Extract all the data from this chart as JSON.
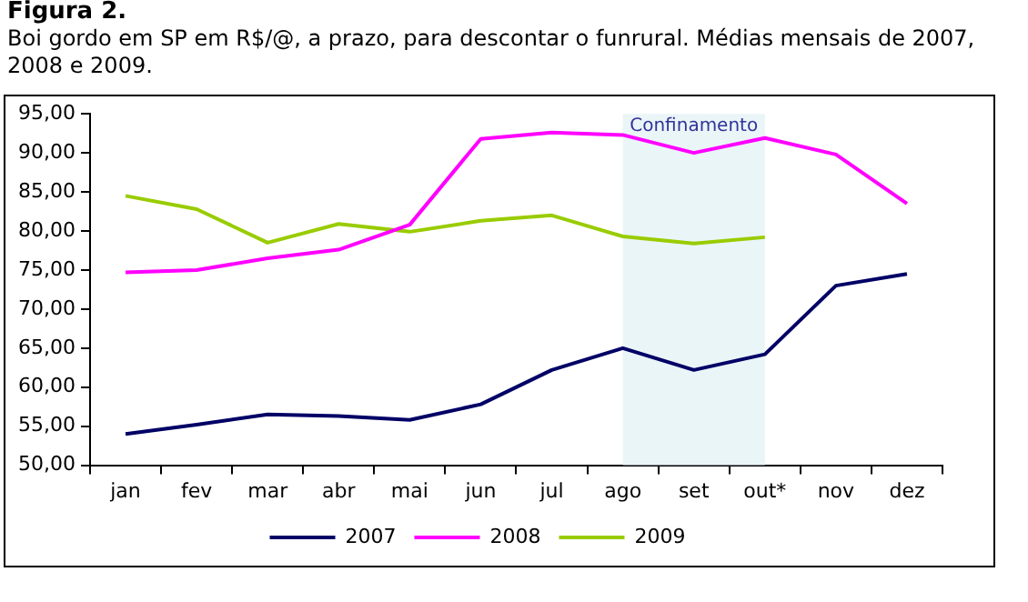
{
  "chart_data": {
    "type": "line",
    "title": "Figura 2.",
    "subtitle": "Boi gordo em SP em R$/@, a prazo, para descontar o funrural. Médias mensais de 2007, 2008 e 2009.",
    "categories": [
      "jan",
      "fev",
      "mar",
      "abr",
      "mai",
      "jun",
      "jul",
      "ago",
      "set",
      "out*",
      "nov",
      "dez"
    ],
    "series": [
      {
        "name": "2007",
        "color": "#000066",
        "values": [
          54,
          55.2,
          56.5,
          56.3,
          55.8,
          57.8,
          62.2,
          65,
          62.2,
          64.2,
          73,
          74.5
        ]
      },
      {
        "name": "2008",
        "color": "#ff00ff",
        "values": [
          74.7,
          75,
          76.5,
          77.6,
          80.8,
          91.8,
          92.6,
          92.3,
          90,
          91.9,
          89.8,
          83.5
        ]
      },
      {
        "name": "2009",
        "color": "#99cc00",
        "values": [
          84.5,
          82.8,
          78.5,
          80.9,
          79.9,
          81.3,
          82,
          79.3,
          78.4,
          79.2,
          null,
          null
        ]
      }
    ],
    "ylim": [
      50,
      95
    ],
    "yticks": [
      {
        "value": 50,
        "label": "50,00"
      },
      {
        "value": 55,
        "label": "55,00"
      },
      {
        "value": 60,
        "label": "60,00"
      },
      {
        "value": 65,
        "label": "65,00"
      },
      {
        "value": 70,
        "label": "70,00"
      },
      {
        "value": 75,
        "label": "75,00"
      },
      {
        "value": 80,
        "label": "80,00"
      },
      {
        "value": 85,
        "label": "85,00"
      },
      {
        "value": 90,
        "label": "90,00"
      },
      {
        "value": 95,
        "label": "95,00"
      }
    ],
    "bands": [
      {
        "axis": "x",
        "from": "ago",
        "to": "out*",
        "label": "Confinamento",
        "color": "#eaf5f8"
      }
    ],
    "grid": false,
    "legend": "bottom",
    "marker": "none",
    "line_style": "solid"
  }
}
